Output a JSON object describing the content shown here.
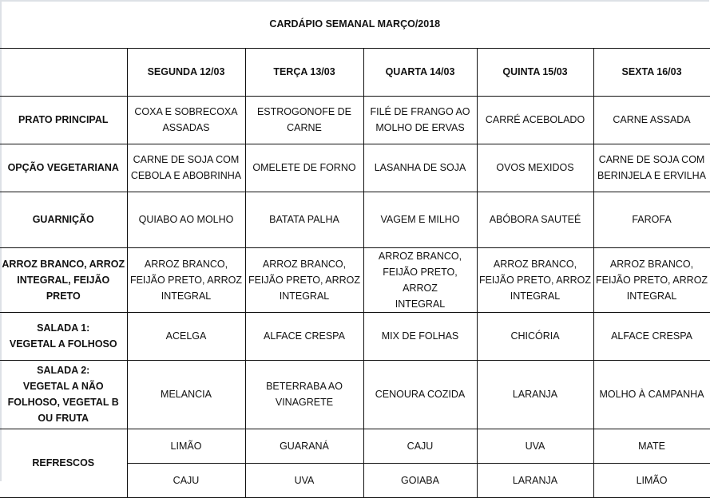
{
  "title": "CARDÁPIO SEMANAL MARÇO/2018",
  "days": [
    "SEGUNDA 12/03",
    "TERÇA 13/03",
    "QUARTA 14/03",
    "QUINTA 15/03",
    "SEXTA 16/03"
  ],
  "rows": [
    {
      "label": "PRATO PRINCIPAL",
      "cells": [
        "COXA E SOBRECOXA\nASSADAS",
        "ESTROGONOFE DE\nCARNE",
        "FILÉ DE FRANGO AO\nMOLHO DE ERVAS",
        "CARRÉ ACEBOLADO",
        "CARNE ASSADA"
      ]
    },
    {
      "label": "OPÇÃO VEGETARIANA",
      "cells": [
        "CARNE DE SOJA COM\nCEBOLA E ABOBRINHA",
        "OMELETE DE FORNO",
        "LASANHA DE SOJA",
        "OVOS MEXIDOS",
        "CARNE DE SOJA COM\nBERINJELA E ERVILHA"
      ]
    },
    {
      "label": "GUARNIÇÃO",
      "cells": [
        "QUIABO AO MOLHO",
        "BATATA PALHA",
        "VAGEM E MILHO",
        "ABÓBORA SAUTEÉ",
        "FAROFA"
      ]
    },
    {
      "label": "ARROZ BRANCO, ARROZ\nINTEGRAL, FEIJÃO PRETO",
      "cells": [
        "ARROZ BRANCO,\nFEIJÃO PRETO, ARROZ\nINTEGRAL",
        "ARROZ BRANCO,\nFEIJÃO PRETO, ARROZ\nINTEGRAL",
        "ARROZ BRANCO,\nFEIJÃO PRETO, ARROZ\nINTEGRAL",
        "ARROZ BRANCO,\nFEIJÃO PRETO, ARROZ\nINTEGRAL",
        "ARROZ BRANCO,\nFEIJÃO PRETO, ARROZ\nINTEGRAL"
      ]
    },
    {
      "label": "SALADA 1:\nVEGETAL A FOLHOSO",
      "cells": [
        "ACELGA",
        "ALFACE CRESPA",
        "MIX DE FOLHAS",
        "CHICÓRIA",
        "ALFACE CRESPA"
      ]
    },
    {
      "label": "SALADA 2:\nVEGETAL A NÃO\nFOLHOSO, VEGETAL B\nOU FRUTA",
      "cells": [
        "MELANCIA",
        "BETERRABA AO\nVINAGRETE",
        "CENOURA COZIDA",
        "LARANJA",
        "MOLHO À CAMPANHA"
      ]
    }
  ],
  "refrescos": {
    "label": "REFRESCOS",
    "row1": [
      "LIMÃO",
      "GUARANÁ",
      "CAJU",
      "UVA",
      "MATE"
    ],
    "row2": [
      "CAJU",
      "UVA",
      "GOIABA",
      "LARANJA",
      "LIMÃO"
    ]
  }
}
